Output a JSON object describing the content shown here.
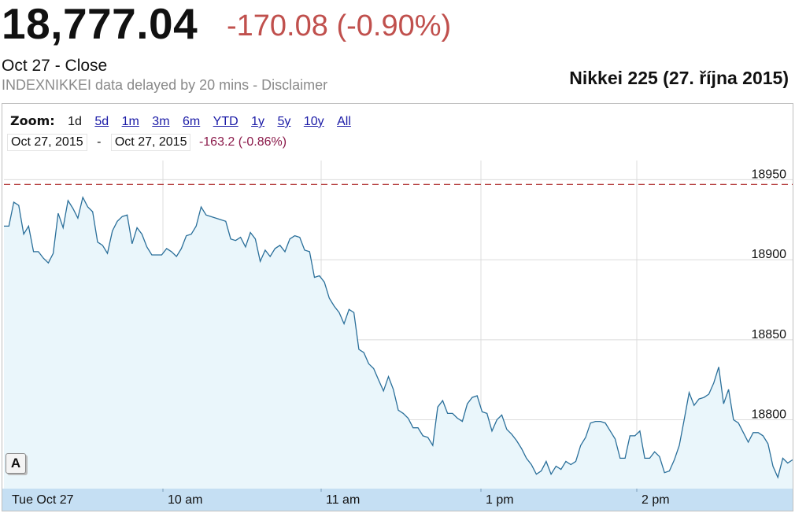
{
  "header": {
    "price": "18,777.04",
    "change": "-170.08 (-0.90%)",
    "close_line": "Oct 27 - Close",
    "delay_line": "INDEXNIKKEI data delayed by 20 mins - Disclaimer"
  },
  "overlay_title": "Nikkei 225 (27. října 2015)",
  "zoom": {
    "label": "Zoom:",
    "items": [
      "1d",
      "5d",
      "1m",
      "3m",
      "6m",
      "YTD",
      "1y",
      "5y",
      "10y",
      "All"
    ],
    "active": "1d"
  },
  "range": {
    "from": "Oct 27, 2015",
    "separator": "-",
    "to": "Oct 27, 2015",
    "change": "-163.2 (-0.86%)"
  },
  "annotation_button": "A",
  "colors": {
    "line": "#2a6f9a",
    "fill": "#eaf6fb",
    "prev_close_dash": "#b03030",
    "change_negative": "#c0504d",
    "xaxis_band": "#c5dff3"
  },
  "chart_data": {
    "type": "area",
    "title": "",
    "xlabel": "",
    "ylabel": "",
    "x_tick_labels": [
      "Tue Oct 27",
      "10 am",
      "11 am",
      "1 pm",
      "2 pm"
    ],
    "y_ticks": [
      18800,
      18850,
      18900,
      18950
    ],
    "ylim": [
      18757,
      18962
    ],
    "previous_close": 18947.1,
    "grid": true,
    "series": [
      {
        "values": [
          18921,
          18921,
          18936,
          18934,
          18916,
          18921,
          18905,
          18905,
          18901,
          18898,
          18904,
          18929,
          18920,
          18937,
          18932,
          18926,
          18939,
          18933,
          18930,
          18911,
          18909,
          18904,
          18918,
          18924,
          18927,
          18928,
          18910,
          18920,
          18916,
          18908,
          18903,
          18903,
          18903,
          18907,
          18905,
          18902,
          18907,
          18915,
          18916,
          18921,
          18933,
          18928,
          18927,
          18926,
          18925,
          18924,
          18913,
          18912,
          18914,
          18908,
          18917,
          18913,
          18899,
          18906,
          18902,
          18907,
          18909,
          18905,
          18913,
          18915,
          18914,
          18906,
          18905,
          18889,
          18890,
          18886,
          18876,
          18871,
          18867,
          18860,
          18869,
          18867,
          18844,
          18842,
          18835,
          18832,
          18825,
          18818,
          18827,
          18819,
          18806,
          18804,
          18801,
          18795,
          18795,
          18790,
          18789,
          18784,
          18808,
          18812,
          18804,
          18804,
          18801,
          18799,
          18810,
          18814,
          18815,
          18805,
          18804,
          18793,
          18800,
          18803,
          18794,
          18791,
          18787,
          18782,
          18776,
          18772,
          18766,
          18768,
          18774,
          18766,
          18771,
          18769,
          18774,
          18772,
          18774,
          18784,
          18789,
          18798,
          18799,
          18799,
          18798,
          18793,
          18788,
          18776,
          18776,
          18790,
          18790,
          18793,
          18776,
          18776,
          18780,
          18777,
          18767,
          18768,
          18775,
          18784,
          18800,
          18817,
          18809,
          18813,
          18814,
          18816,
          18823,
          18833,
          18810,
          18819,
          18800,
          18798,
          18792,
          18786,
          18792,
          18792,
          18790,
          18785,
          18771,
          18764,
          18776,
          18773,
          18775
        ]
      }
    ]
  }
}
